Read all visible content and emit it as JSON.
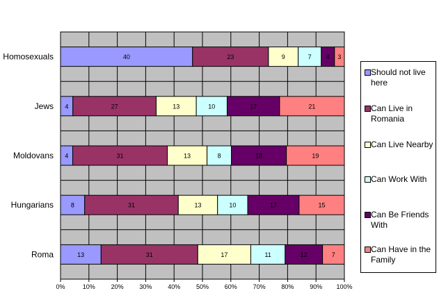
{
  "chart_data": {
    "type": "bar",
    "orientation": "horizontal",
    "stacked": "percent",
    "categories": [
      "Homosexuals",
      "Jews",
      "Moldovans",
      "Hungarians",
      "Roma"
    ],
    "series": [
      {
        "name": "Should not live here",
        "color": "#9999ff",
        "values": [
          40,
          4,
          4,
          8,
          13
        ]
      },
      {
        "name": "Can Live in Romania",
        "color": "#993366",
        "values": [
          23,
          27,
          31,
          31,
          31
        ]
      },
      {
        "name": "Can Live Nearby",
        "color": "#ffffcc",
        "values": [
          9,
          13,
          13,
          13,
          17
        ]
      },
      {
        "name": "Can Work With",
        "color": "#ccffff",
        "values": [
          7,
          10,
          8,
          10,
          11
        ]
      },
      {
        "name": "Can Be Friends With",
        "color": "#660066",
        "values": [
          4,
          17,
          18,
          17,
          12
        ]
      },
      {
        "name": "Can Have in the Family",
        "color": "#ff8080",
        "values": [
          3,
          21,
          19,
          15,
          7
        ]
      }
    ],
    "x_ticks": [
      "0%",
      "10%",
      "20%",
      "30%",
      "40%",
      "50%",
      "60%",
      "70%",
      "80%",
      "90%",
      "100%"
    ],
    "xlim": [
      0,
      100
    ],
    "grid": true,
    "plot_background": "#c0c0c0",
    "legend_position": "right"
  }
}
